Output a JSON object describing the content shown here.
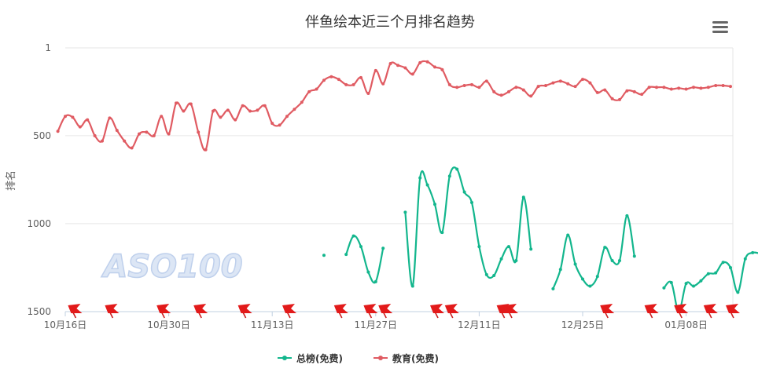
{
  "watermark": "ASO100",
  "menu": {
    "icon": "hamburger-menu-icon"
  },
  "chart_data": {
    "type": "line",
    "title": "伴鱼绘本近三个月排名趋势",
    "ylabel": "排名",
    "xlabel": "",
    "y_reversed": true,
    "ylim": [
      1,
      1500
    ],
    "yticks": [
      1,
      500,
      1000,
      1500
    ],
    "x_range": [
      "2023-10-16",
      "2024-01-16"
    ],
    "xticks": [
      {
        "date": "2023-10-16",
        "label": "10月16日"
      },
      {
        "date": "2023-10-30",
        "label": "10月30日"
      },
      {
        "date": "2023-11-13",
        "label": "11月13日"
      },
      {
        "date": "2023-11-27",
        "label": "11月27日"
      },
      {
        "date": "2023-12-11",
        "label": "12月11日"
      },
      {
        "date": "2023-12-25",
        "label": "12月25日"
      },
      {
        "date": "2024-01-08",
        "label": "01月08日"
      }
    ],
    "legend": "bottom-center",
    "grid": true,
    "series": [
      {
        "name": "总榜(免费)",
        "color": "#13b68d",
        "points": [
          [
            "2023-11-20",
            1180
          ],
          [
            "2023-11-23",
            1175
          ],
          [
            "2023-11-24",
            1070
          ],
          [
            "2023-11-25",
            1130
          ],
          [
            "2023-11-26",
            1275
          ],
          [
            "2023-11-27",
            1330
          ],
          [
            "2023-11-28",
            1140
          ],
          [
            "2023-12-01",
            935
          ],
          [
            "2023-12-02",
            1355
          ],
          [
            "2023-12-03",
            740
          ],
          [
            "2023-12-04",
            780
          ],
          [
            "2023-12-05",
            890
          ],
          [
            "2023-12-06",
            1050
          ],
          [
            "2023-12-07",
            730
          ],
          [
            "2023-12-08",
            690
          ],
          [
            "2023-12-09",
            820
          ],
          [
            "2023-12-10",
            880
          ],
          [
            "2023-12-11",
            1130
          ],
          [
            "2023-12-12",
            1290
          ],
          [
            "2023-12-13",
            1295
          ],
          [
            "2023-12-14",
            1200
          ],
          [
            "2023-12-15",
            1130
          ],
          [
            "2023-12-16",
            1210
          ],
          [
            "2023-12-17",
            850
          ],
          [
            "2023-12-18",
            1145
          ],
          [
            "2023-12-21",
            1370
          ],
          [
            "2023-12-22",
            1260
          ],
          [
            "2023-12-23",
            1065
          ],
          [
            "2023-12-24",
            1230
          ],
          [
            "2023-12-25",
            1315
          ],
          [
            "2023-12-26",
            1355
          ],
          [
            "2023-12-27",
            1300
          ],
          [
            "2023-12-28",
            1135
          ],
          [
            "2023-12-29",
            1210
          ],
          [
            "2023-12-30",
            1210
          ],
          [
            "2023-12-31",
            955
          ],
          [
            "2024-01-01",
            1185
          ],
          [
            "2024-01-05",
            1365
          ],
          [
            "2024-01-06",
            1335
          ],
          [
            "2024-01-07",
            1500
          ],
          [
            "2024-01-08",
            1340
          ],
          [
            "2024-01-09",
            1355
          ],
          [
            "2024-01-10",
            1325
          ],
          [
            "2024-01-11",
            1285
          ],
          [
            "2024-01-12",
            1280
          ],
          [
            "2024-01-13",
            1220
          ],
          [
            "2024-01-14",
            1250
          ],
          [
            "2024-01-15",
            1390
          ],
          [
            "2024-01-16",
            1200
          ],
          [
            "2024-01-17",
            1165
          ],
          [
            "2024-01-18",
            1170
          ]
        ]
      },
      {
        "name": "教育(免费)",
        "color": "#e05b62",
        "points": [
          [
            "2023-10-15",
            475
          ],
          [
            "2023-10-16",
            390
          ],
          [
            "2023-10-17",
            395
          ],
          [
            "2023-10-18",
            450
          ],
          [
            "2023-10-19",
            410
          ],
          [
            "2023-10-20",
            500
          ],
          [
            "2023-10-21",
            530
          ],
          [
            "2023-10-22",
            400
          ],
          [
            "2023-10-23",
            470
          ],
          [
            "2023-10-24",
            530
          ],
          [
            "2023-10-25",
            570
          ],
          [
            "2023-10-26",
            490
          ],
          [
            "2023-10-27",
            480
          ],
          [
            "2023-10-28",
            500
          ],
          [
            "2023-10-29",
            390
          ],
          [
            "2023-10-30",
            490
          ],
          [
            "2023-10-31",
            315
          ],
          [
            "2023-11-01",
            360
          ],
          [
            "2023-11-02",
            320
          ],
          [
            "2023-11-03",
            480
          ],
          [
            "2023-11-04",
            580
          ],
          [
            "2023-11-05",
            360
          ],
          [
            "2023-11-06",
            395
          ],
          [
            "2023-11-07",
            355
          ],
          [
            "2023-11-08",
            410
          ],
          [
            "2023-11-09",
            330
          ],
          [
            "2023-11-10",
            360
          ],
          [
            "2023-11-11",
            355
          ],
          [
            "2023-11-12",
            330
          ],
          [
            "2023-11-13",
            430
          ],
          [
            "2023-11-14",
            440
          ],
          [
            "2023-11-15",
            390
          ],
          [
            "2023-11-16",
            350
          ],
          [
            "2023-11-17",
            310
          ],
          [
            "2023-11-18",
            250
          ],
          [
            "2023-11-19",
            235
          ],
          [
            "2023-11-20",
            185
          ],
          [
            "2023-11-21",
            165
          ],
          [
            "2023-11-22",
            180
          ],
          [
            "2023-11-23",
            210
          ],
          [
            "2023-11-24",
            210
          ],
          [
            "2023-11-25",
            170
          ],
          [
            "2023-11-26",
            260
          ],
          [
            "2023-11-27",
            130
          ],
          [
            "2023-11-28",
            205
          ],
          [
            "2023-11-29",
            90
          ],
          [
            "2023-11-30",
            100
          ],
          [
            "2023-12-01",
            115
          ],
          [
            "2023-12-02",
            150
          ],
          [
            "2023-12-03",
            85
          ],
          [
            "2023-12-04",
            80
          ],
          [
            "2023-12-05",
            110
          ],
          [
            "2023-12-06",
            125
          ],
          [
            "2023-12-07",
            210
          ],
          [
            "2023-12-08",
            225
          ],
          [
            "2023-12-09",
            215
          ],
          [
            "2023-12-10",
            210
          ],
          [
            "2023-12-11",
            225
          ],
          [
            "2023-12-12",
            190
          ],
          [
            "2023-12-13",
            250
          ],
          [
            "2023-12-14",
            270
          ],
          [
            "2023-12-15",
            250
          ],
          [
            "2023-12-16",
            225
          ],
          [
            "2023-12-17",
            240
          ],
          [
            "2023-12-18",
            275
          ],
          [
            "2023-12-19",
            220
          ],
          [
            "2023-12-20",
            215
          ],
          [
            "2023-12-21",
            200
          ],
          [
            "2023-12-22",
            190
          ],
          [
            "2023-12-23",
            205
          ],
          [
            "2023-12-24",
            220
          ],
          [
            "2023-12-25",
            180
          ],
          [
            "2023-12-26",
            200
          ],
          [
            "2023-12-27",
            255
          ],
          [
            "2023-12-28",
            240
          ],
          [
            "2023-12-29",
            290
          ],
          [
            "2023-12-30",
            295
          ],
          [
            "2023-12-31",
            245
          ],
          [
            "2024-01-01",
            250
          ],
          [
            "2024-01-02",
            265
          ],
          [
            "2024-01-03",
            225
          ],
          [
            "2024-01-04",
            225
          ],
          [
            "2024-01-05",
            225
          ],
          [
            "2024-01-06",
            235
          ],
          [
            "2024-01-07",
            230
          ],
          [
            "2024-01-08",
            235
          ],
          [
            "2024-01-09",
            225
          ],
          [
            "2024-01-10",
            230
          ],
          [
            "2024-01-11",
            225
          ],
          [
            "2024-01-12",
            215
          ],
          [
            "2024-01-13",
            215
          ],
          [
            "2024-01-14",
            220
          ]
        ]
      }
    ],
    "event_flags": [
      "2023-10-17",
      "2023-10-22",
      "2023-10-29",
      "2023-11-03",
      "2023-11-09",
      "2023-11-15",
      "2023-11-22",
      "2023-11-26",
      "2023-11-28",
      "2023-12-05",
      "2023-12-07",
      "2023-12-14",
      "2023-12-15",
      "2023-12-28",
      "2024-01-03",
      "2024-01-07",
      "2024-01-11",
      "2024-01-14"
    ]
  }
}
